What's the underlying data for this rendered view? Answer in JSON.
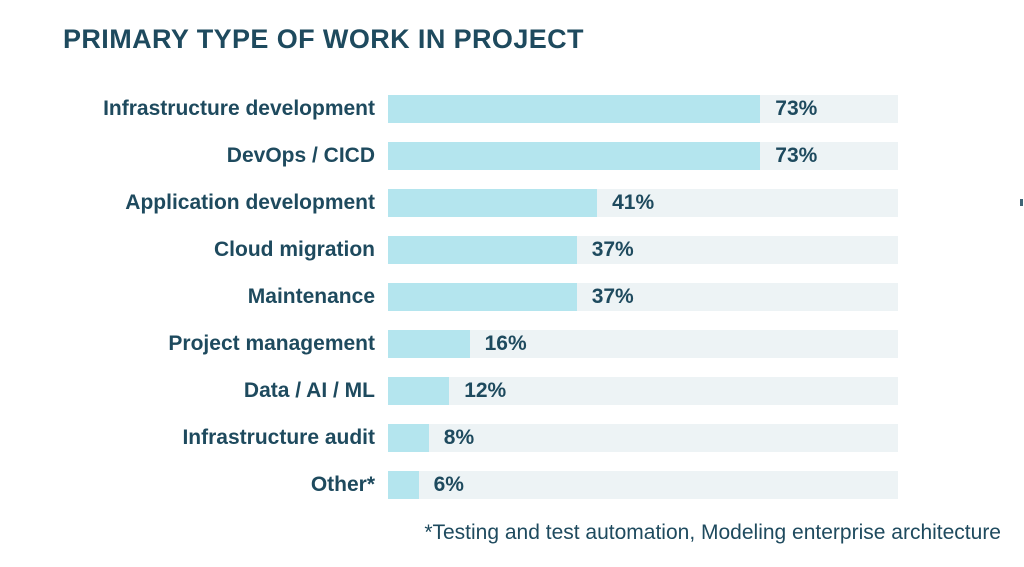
{
  "title": "PRIMARY TYPE OF WORK IN PROJECT",
  "footnote": "*Testing and test automation, Modeling enterprise architecture",
  "colors": {
    "text": "#1e4a5e",
    "bar_fill": "#b4e5ee",
    "bar_track": "#edf3f5",
    "background": "#ffffff"
  },
  "chart_data": {
    "type": "bar",
    "orientation": "horizontal",
    "title": "PRIMARY TYPE OF WORK IN PROJECT",
    "categories": [
      "Infrastructure development",
      "DevOps / CICD",
      "Application development",
      "Cloud migration",
      "Maintenance",
      "Project management",
      "Data / AI / ML",
      "Infrastructure audit",
      "Other*"
    ],
    "values": [
      73,
      73,
      41,
      37,
      37,
      16,
      12,
      8,
      6
    ],
    "value_labels": [
      "73%",
      "73%",
      "41%",
      "37%",
      "37%",
      "16%",
      "12%",
      "8%",
      "6%"
    ],
    "unit": "%",
    "xlim": [
      0,
      100
    ],
    "grid": false,
    "legend": false,
    "value_label_position": "right-of-bar",
    "category_label_position": "left-right-aligned",
    "footnote": "*Testing and test automation, Modeling enterprise architecture"
  }
}
